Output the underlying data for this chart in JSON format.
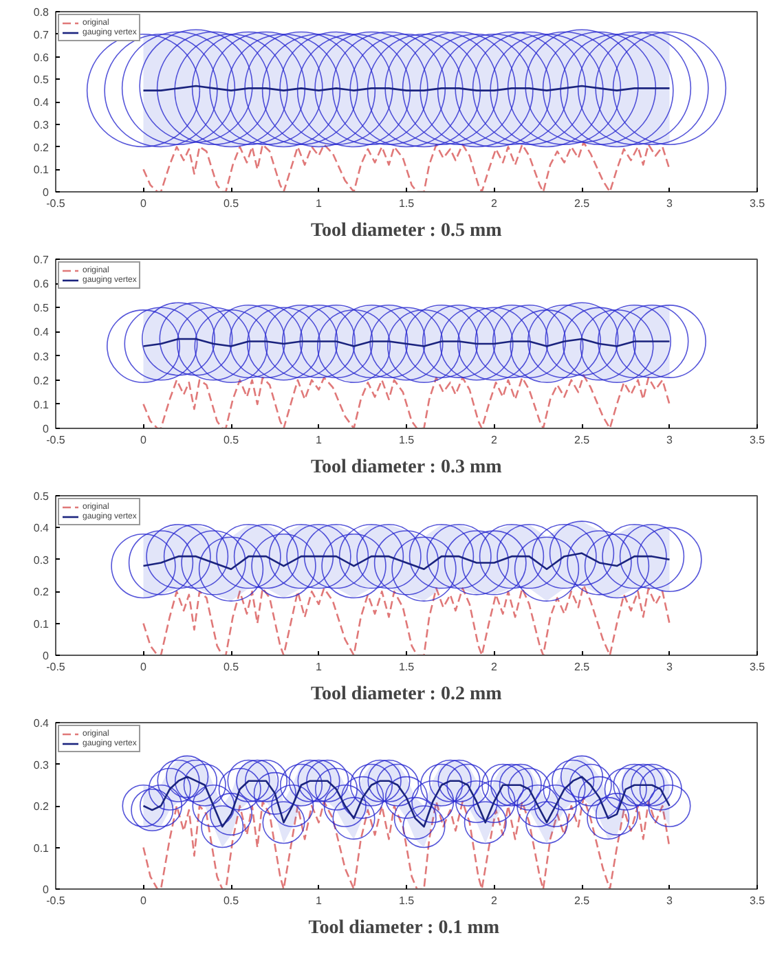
{
  "chart_data": [
    {
      "type": "line",
      "title": "Tool diameter : 0.5 mm",
      "xlim": [
        -0.5,
        3.5
      ],
      "ylim": [
        0,
        0.8
      ],
      "xticks": [
        -0.5,
        0,
        0.5,
        1,
        1.5,
        2,
        2.5,
        3,
        3.5
      ],
      "yticks": [
        0,
        0.1,
        0.2,
        0.3,
        0.4,
        0.5,
        0.6,
        0.7,
        0.8
      ],
      "legend": "top left",
      "grid": false,
      "series": [
        {
          "name": "original",
          "color": "#e07878",
          "line_style": "dashed",
          "x": [
            0.0,
            0.04,
            0.08,
            0.1,
            0.15,
            0.19,
            0.23,
            0.26,
            0.29,
            0.32,
            0.36,
            0.42,
            0.45,
            0.47,
            0.51,
            0.55,
            0.59,
            0.62,
            0.65,
            0.68,
            0.72,
            0.78,
            0.8,
            0.84,
            0.88,
            0.92,
            0.96,
            1.0,
            1.03,
            1.08,
            1.15,
            1.2,
            1.24,
            1.28,
            1.32,
            1.36,
            1.4,
            1.43,
            1.48,
            1.53,
            1.56,
            1.6,
            1.63,
            1.67,
            1.71,
            1.75,
            1.78,
            1.82,
            1.86,
            1.91,
            1.93,
            1.97,
            2.01,
            2.05,
            2.08,
            2.12,
            2.16,
            2.2,
            2.26,
            2.28,
            2.32,
            2.36,
            2.4,
            2.44,
            2.48,
            2.51,
            2.55,
            2.62,
            2.66,
            2.7,
            2.74,
            2.78,
            2.82,
            2.85,
            2.88,
            2.92,
            2.96,
            3.0
          ],
          "values": [
            0.1,
            0.03,
            0.0,
            0.0,
            0.12,
            0.2,
            0.14,
            0.19,
            0.08,
            0.2,
            0.18,
            0.03,
            0.0,
            0.0,
            0.12,
            0.2,
            0.13,
            0.2,
            0.1,
            0.21,
            0.18,
            0.03,
            0.0,
            0.1,
            0.2,
            0.12,
            0.2,
            0.16,
            0.21,
            0.17,
            0.05,
            0.0,
            0.12,
            0.19,
            0.13,
            0.2,
            0.12,
            0.2,
            0.15,
            0.03,
            0.0,
            0.0,
            0.12,
            0.21,
            0.15,
            0.19,
            0.14,
            0.21,
            0.16,
            0.03,
            0.0,
            0.1,
            0.19,
            0.13,
            0.2,
            0.12,
            0.21,
            0.16,
            0.03,
            0.0,
            0.12,
            0.18,
            0.13,
            0.2,
            0.15,
            0.22,
            0.17,
            0.05,
            0.0,
            0.1,
            0.19,
            0.14,
            0.2,
            0.12,
            0.21,
            0.16,
            0.2,
            0.1
          ]
        },
        {
          "name": "gauging vertex",
          "color": "#1a237e",
          "line_style": "solid",
          "x": [
            0,
            0.1,
            0.2,
            0.3,
            0.4,
            0.5,
            0.6,
            0.7,
            0.8,
            0.9,
            1,
            1.1,
            1.2,
            1.3,
            1.4,
            1.5,
            1.6,
            1.7,
            1.8,
            1.9,
            2,
            2.1,
            2.2,
            2.3,
            2.4,
            2.5,
            2.6,
            2.7,
            2.8,
            2.9,
            3
          ],
          "values": [
            0.45,
            0.45,
            0.46,
            0.47,
            0.46,
            0.45,
            0.46,
            0.46,
            0.45,
            0.46,
            0.45,
            0.46,
            0.45,
            0.46,
            0.46,
            0.45,
            0.45,
            0.46,
            0.46,
            0.45,
            0.45,
            0.46,
            0.46,
            0.45,
            0.46,
            0.47,
            0.46,
            0.45,
            0.46,
            0.46,
            0.46
          ],
          "lower": [
            0.2,
            0.2,
            0.21,
            0.22,
            0.21,
            0.2,
            0.21,
            0.21,
            0.2,
            0.21,
            0.2,
            0.21,
            0.2,
            0.21,
            0.21,
            0.2,
            0.2,
            0.21,
            0.21,
            0.2,
            0.2,
            0.21,
            0.21,
            0.2,
            0.21,
            0.22,
            0.21,
            0.2,
            0.21,
            0.21,
            0.21
          ],
          "upper": [
            0.7,
            0.7,
            0.71,
            0.72,
            0.71,
            0.7,
            0.71,
            0.71,
            0.7,
            0.71,
            0.7,
            0.71,
            0.7,
            0.71,
            0.71,
            0.7,
            0.7,
            0.71,
            0.71,
            0.7,
            0.7,
            0.71,
            0.71,
            0.7,
            0.71,
            0.72,
            0.71,
            0.7,
            0.71,
            0.71,
            0.71
          ]
        }
      ]
    },
    {
      "type": "line",
      "title": "Tool diameter : 0.3 mm",
      "xlim": [
        -0.5,
        3.5
      ],
      "ylim": [
        0,
        0.7
      ],
      "xticks": [
        -0.5,
        0,
        0.5,
        1,
        1.5,
        2,
        2.5,
        3,
        3.5
      ],
      "yticks": [
        0,
        0.1,
        0.2,
        0.3,
        0.4,
        0.5,
        0.6,
        0.7
      ],
      "legend": "top left",
      "grid": false,
      "series": [
        {
          "name": "original",
          "color": "#e07878",
          "line_style": "dashed",
          "x": [
            0.0,
            0.04,
            0.08,
            0.1,
            0.15,
            0.19,
            0.23,
            0.26,
            0.29,
            0.32,
            0.36,
            0.42,
            0.45,
            0.47,
            0.51,
            0.55,
            0.59,
            0.62,
            0.65,
            0.68,
            0.72,
            0.78,
            0.8,
            0.84,
            0.88,
            0.92,
            0.96,
            1.0,
            1.03,
            1.08,
            1.15,
            1.2,
            1.24,
            1.28,
            1.32,
            1.36,
            1.4,
            1.43,
            1.48,
            1.53,
            1.56,
            1.6,
            1.63,
            1.67,
            1.71,
            1.75,
            1.78,
            1.82,
            1.86,
            1.91,
            1.93,
            1.97,
            2.01,
            2.05,
            2.08,
            2.12,
            2.16,
            2.2,
            2.26,
            2.28,
            2.32,
            2.36,
            2.4,
            2.44,
            2.48,
            2.51,
            2.55,
            2.62,
            2.66,
            2.7,
            2.74,
            2.78,
            2.82,
            2.85,
            2.88,
            2.92,
            2.96,
            3.0
          ],
          "values": [
            0.1,
            0.03,
            0.0,
            0.0,
            0.12,
            0.2,
            0.14,
            0.19,
            0.08,
            0.2,
            0.18,
            0.03,
            0.0,
            0.0,
            0.12,
            0.2,
            0.13,
            0.2,
            0.1,
            0.21,
            0.18,
            0.03,
            0.0,
            0.1,
            0.2,
            0.12,
            0.2,
            0.16,
            0.21,
            0.17,
            0.05,
            0.0,
            0.12,
            0.19,
            0.13,
            0.2,
            0.12,
            0.2,
            0.15,
            0.03,
            0.0,
            0.0,
            0.12,
            0.21,
            0.15,
            0.19,
            0.14,
            0.21,
            0.16,
            0.03,
            0.0,
            0.1,
            0.19,
            0.13,
            0.2,
            0.12,
            0.21,
            0.16,
            0.03,
            0.0,
            0.12,
            0.18,
            0.13,
            0.2,
            0.15,
            0.22,
            0.17,
            0.05,
            0.0,
            0.1,
            0.19,
            0.14,
            0.2,
            0.12,
            0.21,
            0.16,
            0.2,
            0.1
          ]
        },
        {
          "name": "gauging vertex",
          "color": "#1a237e",
          "line_style": "solid",
          "x": [
            0,
            0.1,
            0.2,
            0.3,
            0.4,
            0.5,
            0.6,
            0.7,
            0.8,
            0.9,
            1,
            1.1,
            1.2,
            1.3,
            1.4,
            1.5,
            1.6,
            1.7,
            1.8,
            1.9,
            2,
            2.1,
            2.2,
            2.3,
            2.4,
            2.5,
            2.6,
            2.7,
            2.8,
            2.9,
            3
          ],
          "values": [
            0.34,
            0.35,
            0.37,
            0.37,
            0.35,
            0.34,
            0.36,
            0.36,
            0.35,
            0.36,
            0.36,
            0.36,
            0.34,
            0.36,
            0.36,
            0.35,
            0.34,
            0.36,
            0.36,
            0.35,
            0.35,
            0.36,
            0.36,
            0.34,
            0.36,
            0.37,
            0.35,
            0.34,
            0.36,
            0.36,
            0.36
          ],
          "lower": [
            0.19,
            0.2,
            0.22,
            0.22,
            0.2,
            0.19,
            0.21,
            0.21,
            0.2,
            0.21,
            0.21,
            0.21,
            0.19,
            0.21,
            0.21,
            0.2,
            0.19,
            0.21,
            0.21,
            0.2,
            0.2,
            0.21,
            0.21,
            0.19,
            0.21,
            0.22,
            0.2,
            0.19,
            0.21,
            0.21,
            0.21
          ],
          "upper": [
            0.49,
            0.5,
            0.52,
            0.52,
            0.5,
            0.49,
            0.51,
            0.51,
            0.5,
            0.51,
            0.51,
            0.51,
            0.49,
            0.51,
            0.51,
            0.5,
            0.49,
            0.51,
            0.51,
            0.5,
            0.5,
            0.51,
            0.51,
            0.49,
            0.51,
            0.52,
            0.5,
            0.49,
            0.51,
            0.51,
            0.51
          ]
        }
      ]
    },
    {
      "type": "line",
      "title": "Tool diameter : 0.2 mm",
      "xlim": [
        -0.5,
        3.5
      ],
      "ylim": [
        0,
        0.5
      ],
      "xticks": [
        -0.5,
        0,
        0.5,
        1,
        1.5,
        2,
        2.5,
        3,
        3.5
      ],
      "yticks": [
        0,
        0.1,
        0.2,
        0.3,
        0.4,
        0.5
      ],
      "legend": "top left",
      "grid": false,
      "series": [
        {
          "name": "original",
          "color": "#e07878",
          "line_style": "dashed",
          "x": [
            0.0,
            0.04,
            0.08,
            0.1,
            0.15,
            0.19,
            0.23,
            0.26,
            0.29,
            0.32,
            0.36,
            0.42,
            0.45,
            0.47,
            0.51,
            0.55,
            0.59,
            0.62,
            0.65,
            0.68,
            0.72,
            0.78,
            0.8,
            0.84,
            0.88,
            0.92,
            0.96,
            1.0,
            1.03,
            1.08,
            1.15,
            1.2,
            1.24,
            1.28,
            1.32,
            1.36,
            1.4,
            1.43,
            1.48,
            1.53,
            1.56,
            1.6,
            1.63,
            1.67,
            1.71,
            1.75,
            1.78,
            1.82,
            1.86,
            1.91,
            1.93,
            1.97,
            2.01,
            2.05,
            2.08,
            2.12,
            2.16,
            2.2,
            2.26,
            2.28,
            2.32,
            2.36,
            2.4,
            2.44,
            2.48,
            2.51,
            2.55,
            2.62,
            2.66,
            2.7,
            2.74,
            2.78,
            2.82,
            2.85,
            2.88,
            2.92,
            2.96,
            3.0
          ],
          "values": [
            0.1,
            0.03,
            0.0,
            0.0,
            0.12,
            0.2,
            0.14,
            0.19,
            0.08,
            0.2,
            0.18,
            0.03,
            0.0,
            0.0,
            0.12,
            0.2,
            0.13,
            0.2,
            0.1,
            0.21,
            0.18,
            0.03,
            0.0,
            0.1,
            0.2,
            0.12,
            0.2,
            0.16,
            0.21,
            0.17,
            0.05,
            0.0,
            0.12,
            0.19,
            0.13,
            0.2,
            0.12,
            0.2,
            0.15,
            0.03,
            0.0,
            0.0,
            0.12,
            0.21,
            0.15,
            0.19,
            0.14,
            0.21,
            0.16,
            0.03,
            0.0,
            0.1,
            0.19,
            0.13,
            0.2,
            0.12,
            0.21,
            0.16,
            0.03,
            0.0,
            0.12,
            0.18,
            0.13,
            0.2,
            0.15,
            0.22,
            0.17,
            0.05,
            0.0,
            0.1,
            0.19,
            0.14,
            0.2,
            0.12,
            0.21,
            0.16,
            0.2,
            0.1
          ]
        },
        {
          "name": "gauging vertex",
          "color": "#1a237e",
          "line_style": "solid",
          "x": [
            0,
            0.1,
            0.2,
            0.3,
            0.4,
            0.5,
            0.6,
            0.7,
            0.8,
            0.9,
            1,
            1.1,
            1.2,
            1.3,
            1.4,
            1.5,
            1.6,
            1.7,
            1.8,
            1.9,
            2,
            2.1,
            2.2,
            2.3,
            2.4,
            2.5,
            2.6,
            2.7,
            2.8,
            2.9,
            3
          ],
          "values": [
            0.28,
            0.29,
            0.31,
            0.31,
            0.29,
            0.27,
            0.31,
            0.31,
            0.28,
            0.31,
            0.31,
            0.31,
            0.28,
            0.31,
            0.31,
            0.29,
            0.27,
            0.31,
            0.31,
            0.29,
            0.29,
            0.31,
            0.31,
            0.27,
            0.31,
            0.32,
            0.29,
            0.28,
            0.31,
            0.31,
            0.3
          ],
          "lower": [
            0.18,
            0.19,
            0.21,
            0.21,
            0.19,
            0.17,
            0.21,
            0.21,
            0.18,
            0.21,
            0.21,
            0.21,
            0.18,
            0.21,
            0.21,
            0.19,
            0.17,
            0.21,
            0.21,
            0.19,
            0.19,
            0.21,
            0.21,
            0.17,
            0.21,
            0.22,
            0.19,
            0.18,
            0.21,
            0.21,
            0.2
          ],
          "upper": [
            0.38,
            0.39,
            0.41,
            0.41,
            0.39,
            0.37,
            0.41,
            0.41,
            0.38,
            0.41,
            0.41,
            0.41,
            0.38,
            0.41,
            0.41,
            0.39,
            0.37,
            0.41,
            0.41,
            0.39,
            0.39,
            0.41,
            0.41,
            0.37,
            0.41,
            0.42,
            0.39,
            0.38,
            0.41,
            0.41,
            0.4
          ]
        }
      ]
    },
    {
      "type": "line",
      "title": "Tool diameter : 0.1  mm",
      "xlim": [
        -0.5,
        3.5
      ],
      "ylim": [
        0,
        0.4
      ],
      "xticks": [
        -0.5,
        0,
        0.5,
        1,
        1.5,
        2,
        2.5,
        3,
        3.5
      ],
      "yticks": [
        0,
        0.1,
        0.2,
        0.3,
        0.4
      ],
      "legend": "top left",
      "grid": false,
      "series": [
        {
          "name": "original",
          "color": "#e07878",
          "line_style": "dashed",
          "x": [
            0.0,
            0.04,
            0.08,
            0.1,
            0.15,
            0.19,
            0.23,
            0.26,
            0.29,
            0.32,
            0.36,
            0.42,
            0.45,
            0.47,
            0.51,
            0.55,
            0.59,
            0.62,
            0.65,
            0.68,
            0.72,
            0.78,
            0.8,
            0.84,
            0.88,
            0.92,
            0.96,
            1.0,
            1.03,
            1.08,
            1.15,
            1.2,
            1.24,
            1.28,
            1.32,
            1.36,
            1.4,
            1.43,
            1.48,
            1.53,
            1.56,
            1.6,
            1.63,
            1.67,
            1.71,
            1.75,
            1.78,
            1.82,
            1.86,
            1.91,
            1.93,
            1.97,
            2.01,
            2.05,
            2.08,
            2.12,
            2.16,
            2.2,
            2.26,
            2.28,
            2.32,
            2.36,
            2.4,
            2.44,
            2.48,
            2.51,
            2.55,
            2.62,
            2.66,
            2.7,
            2.74,
            2.78,
            2.82,
            2.85,
            2.88,
            2.92,
            2.96,
            3.0
          ],
          "values": [
            0.1,
            0.03,
            0.0,
            0.0,
            0.12,
            0.2,
            0.14,
            0.19,
            0.08,
            0.2,
            0.18,
            0.03,
            0.0,
            0.0,
            0.12,
            0.2,
            0.13,
            0.2,
            0.1,
            0.21,
            0.18,
            0.03,
            0.0,
            0.1,
            0.2,
            0.12,
            0.2,
            0.16,
            0.21,
            0.17,
            0.05,
            0.0,
            0.12,
            0.19,
            0.13,
            0.2,
            0.12,
            0.2,
            0.15,
            0.03,
            0.0,
            0.0,
            0.12,
            0.21,
            0.15,
            0.19,
            0.14,
            0.21,
            0.16,
            0.03,
            0.0,
            0.1,
            0.19,
            0.13,
            0.2,
            0.12,
            0.21,
            0.16,
            0.03,
            0.0,
            0.12,
            0.18,
            0.13,
            0.2,
            0.15,
            0.22,
            0.17,
            0.05,
            0.0,
            0.1,
            0.19,
            0.14,
            0.2,
            0.12,
            0.21,
            0.16,
            0.2,
            0.1
          ]
        },
        {
          "name": "gauging vertex",
          "color": "#1a237e",
          "line_style": "solid",
          "x": [
            0,
            0.05,
            0.1,
            0.15,
            0.2,
            0.25,
            0.3,
            0.35,
            0.4,
            0.45,
            0.5,
            0.55,
            0.6,
            0.65,
            0.7,
            0.75,
            0.8,
            0.85,
            0.9,
            0.95,
            1,
            1.05,
            1.1,
            1.15,
            1.2,
            1.25,
            1.3,
            1.35,
            1.4,
            1.45,
            1.5,
            1.55,
            1.6,
            1.65,
            1.7,
            1.75,
            1.8,
            1.85,
            1.9,
            1.95,
            2,
            2.05,
            2.1,
            2.15,
            2.2,
            2.25,
            2.3,
            2.35,
            2.4,
            2.45,
            2.5,
            2.55,
            2.6,
            2.65,
            2.7,
            2.75,
            2.8,
            2.85,
            2.9,
            2.95,
            3
          ],
          "marker": "circle",
          "values": [
            0.2,
            0.19,
            0.2,
            0.24,
            0.26,
            0.27,
            0.26,
            0.25,
            0.2,
            0.15,
            0.18,
            0.24,
            0.26,
            0.26,
            0.26,
            0.23,
            0.16,
            0.2,
            0.25,
            0.26,
            0.26,
            0.26,
            0.24,
            0.2,
            0.17,
            0.22,
            0.25,
            0.26,
            0.26,
            0.25,
            0.22,
            0.17,
            0.15,
            0.21,
            0.25,
            0.26,
            0.26,
            0.25,
            0.21,
            0.16,
            0.21,
            0.25,
            0.25,
            0.25,
            0.24,
            0.2,
            0.16,
            0.2,
            0.24,
            0.26,
            0.27,
            0.25,
            0.22,
            0.17,
            0.18,
            0.24,
            0.25,
            0.25,
            0.25,
            0.24,
            0.2
          ],
          "lower": [
            0.15,
            0.14,
            0.15,
            0.19,
            0.21,
            0.22,
            0.21,
            0.2,
            0.15,
            0.1,
            0.13,
            0.19,
            0.21,
            0.21,
            0.21,
            0.18,
            0.11,
            0.15,
            0.2,
            0.21,
            0.21,
            0.21,
            0.19,
            0.15,
            0.12,
            0.17,
            0.2,
            0.21,
            0.21,
            0.2,
            0.17,
            0.12,
            0.1,
            0.16,
            0.2,
            0.21,
            0.21,
            0.2,
            0.16,
            0.11,
            0.16,
            0.2,
            0.2,
            0.2,
            0.19,
            0.15,
            0.11,
            0.15,
            0.19,
            0.21,
            0.22,
            0.2,
            0.17,
            0.12,
            0.13,
            0.19,
            0.2,
            0.2,
            0.2,
            0.19,
            0.15
          ],
          "upper": [
            0.25,
            0.24,
            0.25,
            0.29,
            0.31,
            0.32,
            0.31,
            0.3,
            0.25,
            0.2,
            0.23,
            0.29,
            0.31,
            0.31,
            0.31,
            0.28,
            0.21,
            0.25,
            0.3,
            0.31,
            0.31,
            0.31,
            0.29,
            0.25,
            0.22,
            0.27,
            0.3,
            0.31,
            0.31,
            0.3,
            0.27,
            0.22,
            0.2,
            0.26,
            0.3,
            0.31,
            0.31,
            0.3,
            0.26,
            0.21,
            0.26,
            0.3,
            0.3,
            0.3,
            0.29,
            0.25,
            0.21,
            0.25,
            0.29,
            0.31,
            0.32,
            0.3,
            0.27,
            0.22,
            0.23,
            0.29,
            0.3,
            0.3,
            0.3,
            0.29,
            0.25
          ]
        }
      ]
    }
  ]
}
